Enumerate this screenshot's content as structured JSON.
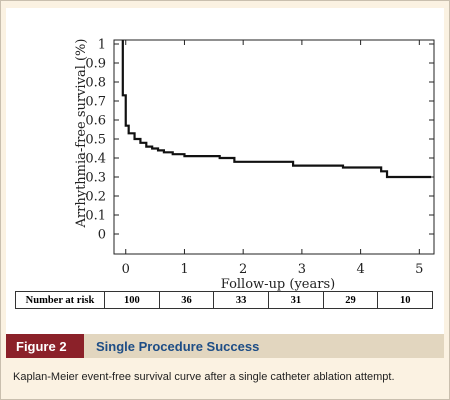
{
  "chart_data": {
    "type": "line",
    "xlabel": "Follow-up (years)",
    "ylabel": "Arrhythmia-free survival (%)",
    "xlim": [
      -0.2,
      5.25
    ],
    "ylim": [
      0,
      1
    ],
    "x_ticks": [
      0,
      1,
      2,
      3,
      4,
      5
    ],
    "y_ticks": [
      0,
      0.1,
      0.2,
      0.3,
      0.4,
      0.5,
      0.6,
      0.7,
      0.8,
      0.9,
      1
    ],
    "x_tick_labels": [
      "0",
      "1",
      "2",
      "3",
      "4",
      "5"
    ],
    "y_tick_labels": [
      "0",
      "0.1",
      "0.2",
      "0.3",
      "0.4",
      "0.5",
      "0.6",
      "0.7",
      "0.8",
      "0.9",
      "1"
    ],
    "grid": false,
    "series": [
      {
        "x": [
          -0.05,
          -0.05,
          0,
          0.05,
          0.15,
          0.25,
          0.35,
          0.45,
          0.55,
          0.65,
          0.8,
          1.0,
          1.6,
          1.85,
          2.85,
          3.7,
          4.35,
          4.45,
          5.2
        ],
        "y": [
          1.02,
          0.73,
          0.57,
          0.53,
          0.5,
          0.48,
          0.46,
          0.45,
          0.44,
          0.43,
          0.42,
          0.41,
          0.4,
          0.38,
          0.36,
          0.35,
          0.33,
          0.3,
          0.3
        ]
      }
    ]
  },
  "risk_table": {
    "label": "Number at risk",
    "values": [
      "100",
      "36",
      "33",
      "31",
      "29",
      "10"
    ]
  },
  "figure": {
    "number": "Figure 2",
    "title": "Single Procedure Success",
    "caption": "Kaplan-Meier event-free survival curve after a single catheter ablation attempt."
  },
  "colors": {
    "figure_tag": "#8b2129",
    "title_text": "#1d4d86",
    "band": "#e2d6bf",
    "background": "#fbf2e2"
  }
}
